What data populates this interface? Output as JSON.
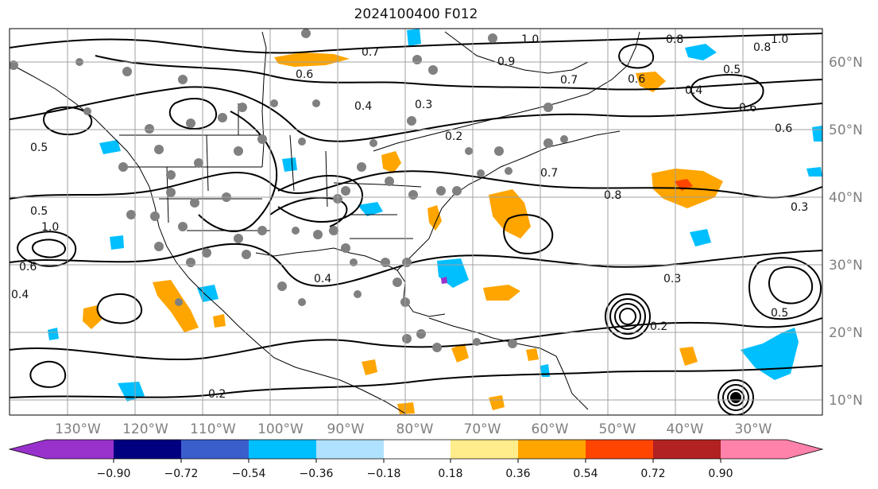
{
  "title": "2024100400 F012",
  "map": {
    "longitude_labels": [
      "130°W",
      "120°W",
      "110°W",
      "100°W",
      "90°W",
      "80°W",
      "70°W",
      "60°W",
      "50°W",
      "40°W",
      "30°W"
    ],
    "latitude_labels": [
      "60°N",
      "50°N",
      "40°N",
      "30°N",
      "20°N",
      "10°N"
    ],
    "contour_labels": [
      "1.0",
      "0.6",
      "0.7",
      "0.4",
      "0.9",
      "0.8",
      "1.0",
      "0.8",
      "0.7",
      "0.5",
      "0.4",
      "0.6",
      "0.6",
      "0.6",
      "0.5",
      "0.3",
      "0.2",
      "0.7",
      "0.8",
      "0.5",
      "0.3",
      "1.0",
      "0.4",
      "0.6",
      "0.3",
      "0.2",
      "0.2",
      "0.5",
      "0.4"
    ]
  },
  "colorbar": {
    "ticks": [
      "−0.90",
      "−0.72",
      "−0.54",
      "−0.36",
      "−0.18",
      "0.18",
      "0.36",
      "0.54",
      "0.72",
      "0.90"
    ],
    "colors": [
      "#9932cc",
      "#000080",
      "#3a5fcd",
      "#00bfff",
      "#b0e2ff",
      "#ffffff",
      "#ffec8b",
      "#ffa500",
      "#ff4500",
      "#b22222",
      "#ff82ab"
    ]
  },
  "shading_colors": {
    "orange": "#ffa500",
    "red": "#ff4500",
    "cyan": "#00bfff",
    "purple": "#9932cc",
    "gray_dot": "#808080"
  }
}
